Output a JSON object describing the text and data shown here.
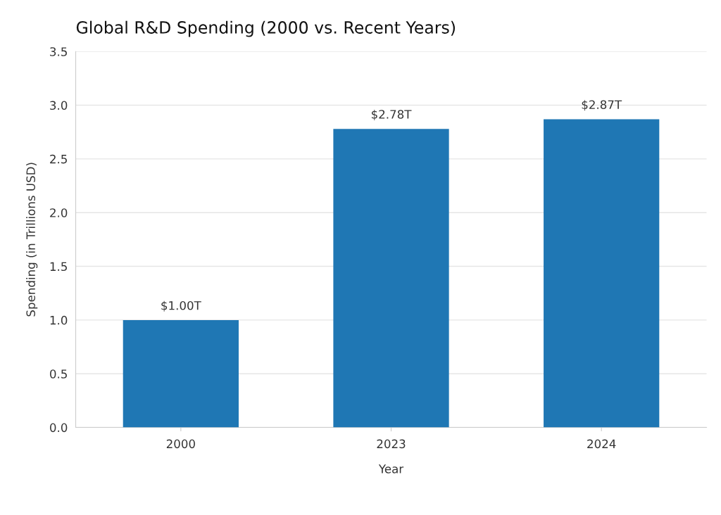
{
  "chart_data": {
    "type": "bar",
    "title": "Global R&D Spending (2000 vs. Recent Years)",
    "xlabel": "Year",
    "ylabel": "Spending (in Trillions USD)",
    "categories": [
      "2000",
      "2023",
      "2024"
    ],
    "values": [
      1.0,
      2.78,
      2.87
    ],
    "value_labels": [
      "$1.00T",
      "$2.78T",
      "$2.87T"
    ],
    "color": "#1f77b4",
    "ylim": [
      0,
      3.5
    ],
    "yticks": [
      {
        "value": 0,
        "label": "0.0"
      },
      {
        "value": 0.5,
        "label": "0.5"
      },
      {
        "value": 1,
        "label": "1.0"
      },
      {
        "value": 1.5,
        "label": "1.5"
      },
      {
        "value": 2,
        "label": "2.0"
      },
      {
        "value": 2.5,
        "label": "2.5"
      },
      {
        "value": 3,
        "label": "3.0"
      },
      {
        "value": 3.5,
        "label": "3.5"
      }
    ],
    "grid": "y"
  }
}
